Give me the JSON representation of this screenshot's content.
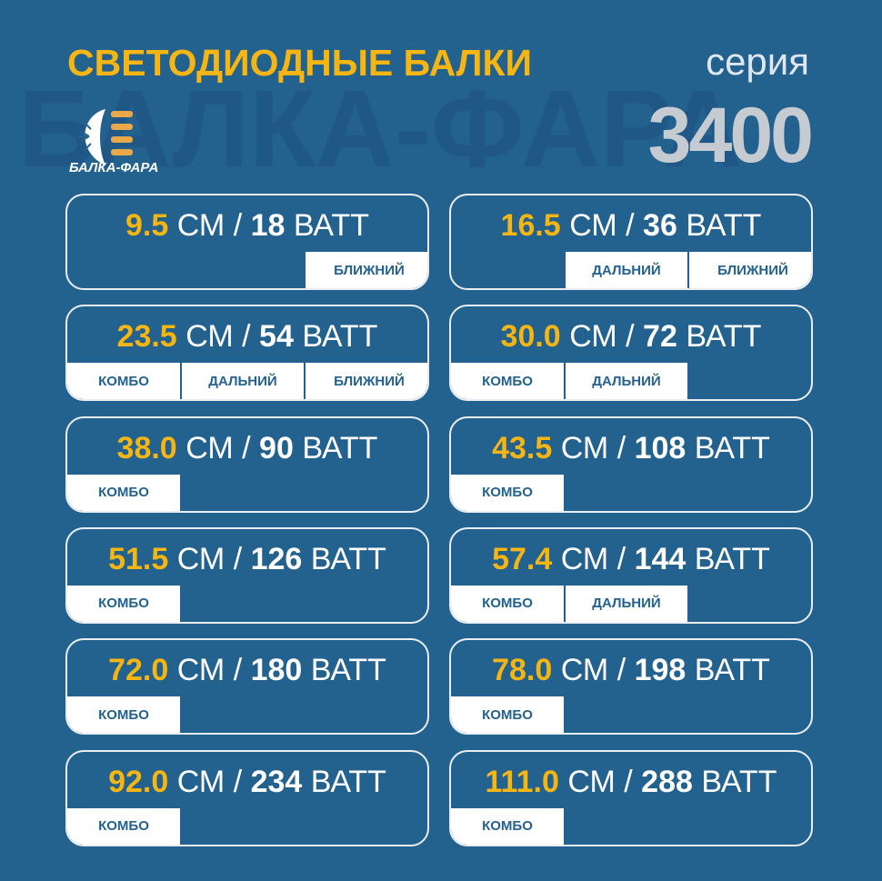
{
  "header": {
    "title": "СВЕТОДИОДНЫЕ БАЛКИ",
    "series_label": "серия",
    "series_number": "3400",
    "watermark": "БАЛКА-ФАРА",
    "logo_text": "БАЛКА-ФАРА"
  },
  "colors": {
    "background": "#23618f",
    "accent": "#f5b512",
    "tag_text": "#23618f"
  },
  "units": {
    "cm": "СМ",
    "sep": "/",
    "watt": "ВАТТ"
  },
  "products": [
    {
      "length": "9.5",
      "power": "18",
      "tags": [
        null,
        null,
        "БЛИЖНИЙ"
      ]
    },
    {
      "length": "16.5",
      "power": "36",
      "tags": [
        null,
        "ДАЛЬНИЙ",
        "БЛИЖНИЙ"
      ]
    },
    {
      "length": "23.5",
      "power": "54",
      "tags": [
        "КОМБО",
        "ДАЛЬНИЙ",
        "БЛИЖНИЙ"
      ]
    },
    {
      "length": "30.0",
      "power": "72",
      "tags": [
        "КОМБО",
        "ДАЛЬНИЙ",
        null
      ]
    },
    {
      "length": "38.0",
      "power": "90",
      "tags": [
        "КОМБО",
        null,
        null
      ]
    },
    {
      "length": "43.5",
      "power": "108",
      "tags": [
        "КОМБО",
        null,
        null
      ]
    },
    {
      "length": "51.5",
      "power": "126",
      "tags": [
        "КОМБО",
        null,
        null
      ]
    },
    {
      "length": "57.4",
      "power": "144",
      "tags": [
        "КОМБО",
        "ДАЛЬНИЙ",
        null
      ]
    },
    {
      "length": "72.0",
      "power": "180",
      "tags": [
        "КОМБО",
        null,
        null
      ]
    },
    {
      "length": "78.0",
      "power": "198",
      "tags": [
        "КОМБО",
        null,
        null
      ]
    },
    {
      "length": "92.0",
      "power": "234",
      "tags": [
        "КОМБО",
        null,
        null
      ]
    },
    {
      "length": "111.0",
      "power": "288",
      "tags": [
        "КОМБО",
        null,
        null
      ]
    }
  ]
}
